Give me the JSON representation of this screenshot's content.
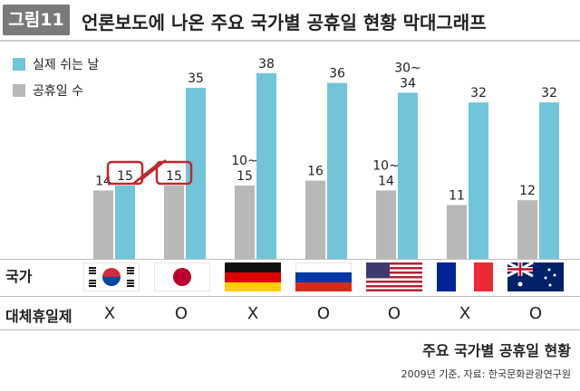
{
  "header": {
    "badge": "그림11",
    "title": "언론보도에 나온 주요 국가별 공휴일 현황 막대그래프"
  },
  "legend": [
    {
      "label": "실제 쉬는 날",
      "color": "#72c4d9"
    },
    {
      "label": "공휴일 수",
      "color": "#b8b8b8"
    }
  ],
  "chart_data": {
    "type": "bar",
    "categories": [
      "대한민국",
      "일본",
      "독일",
      "러시아",
      "미국",
      "프랑스",
      "호주"
    ],
    "series": [
      {
        "name": "공휴일 수",
        "values": [
          14,
          15,
          15,
          16,
          14,
          11,
          12
        ],
        "labels": [
          "14",
          "15",
          "10~\n15",
          "16",
          "10~\n14",
          "11",
          "12"
        ],
        "color": "#b8b8b8"
      },
      {
        "name": "실제 쉬는 날",
        "values": [
          15,
          35,
          38,
          36,
          34,
          32,
          32
        ],
        "labels": [
          "15",
          "35",
          "38",
          "36",
          "30~\n34",
          "32",
          "32"
        ],
        "color": "#72c4d9"
      }
    ],
    "ylim": [
      0,
      40
    ],
    "highlight": "대한민국 실제 쉬는 날(15) ↔ 일본 공휴일 수(15)",
    "grid": false
  },
  "table": {
    "country_label": "국가",
    "substitute_label": "대체휴일제",
    "flags": [
      "korea-flag",
      "japan-flag",
      "germany-flag",
      "russia-flag",
      "usa-flag",
      "france-flag",
      "australia-flag"
    ],
    "substitute": [
      "X",
      "O",
      "X",
      "O",
      "O",
      "X",
      "O"
    ]
  },
  "footer": {
    "subtitle": "주요 국가별 공휴일 현황",
    "source": "2009년 기준, 자료: 한국문화관광연구원"
  }
}
